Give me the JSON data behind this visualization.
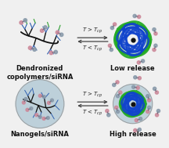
{
  "bg_color": "#f0f0f0",
  "arrow_color": "#444444",
  "top_arrow_label1": "T > T$_{cp}$",
  "top_arrow_label2": "T < T$_{cp}$",
  "bot_arrow_label1": "T > T$_{cp}$",
  "bot_arrow_label2": "T < T$_{cp}$",
  "label_dendronized": "Dendronized\ncopolymers/siRNA",
  "label_nanogels": "Nanogels/siRNA",
  "label_low": "Low release",
  "label_high": "High release",
  "polymer_black": "#111111",
  "polymer_blue": "#3060b0",
  "polymer_green": "#30a030",
  "sirna_pink": "#cc8899",
  "sirna_gray": "#8899aa",
  "ball_blue": "#1144cc",
  "ball_green": "#22aa22",
  "nanogel_sphere": "#b8cdd8",
  "font_size_label": 6.0,
  "font_size_arrow": 5.0
}
